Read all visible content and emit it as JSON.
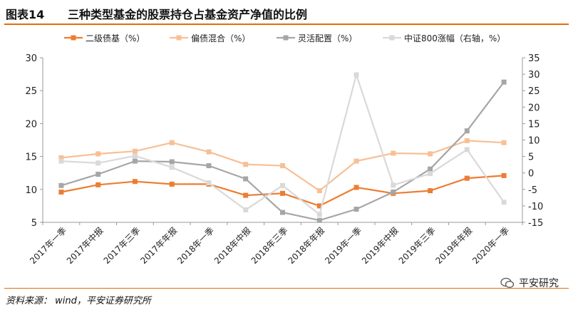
{
  "header": {
    "figure_label": "图表14",
    "title": "三种类型基金的股票持仓占基金资产净值的比例"
  },
  "footer": {
    "source": "资料来源： wind，平安证券研究所",
    "watermark": "平安研究"
  },
  "colors": {
    "accent": "#e36c09",
    "s1": "#ed7d31",
    "s2": "#f8bf96",
    "s3": "#a6a6a6",
    "s4": "#d9d9d9"
  },
  "chart_data": {
    "type": "line",
    "title": "三种类型基金的股票持仓占基金资产净值的比例",
    "categories": [
      "2017年一季",
      "2017年中报",
      "2017年三季",
      "2017年年报",
      "2018年一季",
      "2018年中报",
      "2018年三季",
      "2018年年报",
      "2019年一季",
      "2019年中报",
      "2019年三季",
      "2019年年报",
      "2020年一季"
    ],
    "left_axis": {
      "min": 5,
      "max": 30,
      "ticks": [
        5,
        10,
        15,
        20,
        25,
        30
      ]
    },
    "right_axis": {
      "min": -15,
      "max": 35,
      "ticks": [
        -15,
        -10,
        -5,
        0,
        5,
        10,
        15,
        20,
        25,
        30,
        35
      ]
    },
    "series": [
      {
        "name": "二级债基（%）",
        "axis": "left",
        "values": [
          9.6,
          10.7,
          11.2,
          10.8,
          10.8,
          9.1,
          9.4,
          7.5,
          10.3,
          9.4,
          9.8,
          11.7,
          12.1
        ]
      },
      {
        "name": "偏债混合（%）",
        "axis": "left",
        "values": [
          14.8,
          15.4,
          15.8,
          17.1,
          15.7,
          13.8,
          13.6,
          9.8,
          14.3,
          15.5,
          15.4,
          17.4,
          17.1
        ]
      },
      {
        "name": "灵活配置（%）",
        "axis": "left",
        "values": [
          10.6,
          12.3,
          14.3,
          14.2,
          13.6,
          11.6,
          6.5,
          5.3,
          7.0,
          9.6,
          13.1,
          18.9,
          26.3
        ]
      },
      {
        "name": "中证800涨幅（右轴，%）",
        "axis": "right",
        "values": [
          3.6,
          3.0,
          5.2,
          1.7,
          -3.0,
          -11.2,
          -3.8,
          -12.6,
          29.8,
          -3.7,
          -0.2,
          7.1,
          -8.9
        ]
      }
    ]
  }
}
